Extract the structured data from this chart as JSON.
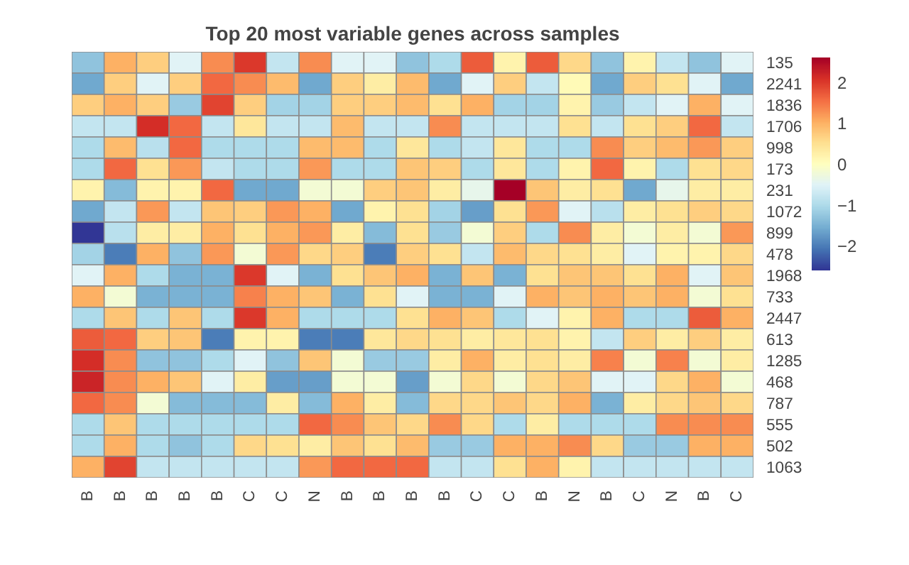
{
  "chart_data": {
    "type": "heatmap",
    "title": "Top 20 most variable genes across samples",
    "categories": [
      "B",
      "B",
      "B",
      "B",
      "B",
      "C",
      "C",
      "N",
      "B",
      "B",
      "B",
      "B",
      "C",
      "C",
      "B",
      "N",
      "B",
      "C",
      "N",
      "B",
      "C"
    ],
    "y_categories": [
      "135",
      "2241",
      "1836",
      "1706",
      "998",
      "173",
      "231",
      "1072",
      "899",
      "478",
      "1968",
      "733",
      "2447",
      "613",
      "1285",
      "468",
      "787",
      "555",
      "502",
      "1063"
    ],
    "cells": [
      [
        -1.3,
        1.0,
        0.7,
        -0.5,
        1.3,
        2.0,
        -0.8,
        1.3,
        -0.5,
        -0.5,
        -1.3,
        -1.0,
        1.7,
        0.2,
        1.7,
        0.6,
        -1.3,
        0.2,
        -0.8,
        -1.3,
        -0.5
      ],
      [
        -1.6,
        0.7,
        -0.5,
        0.7,
        1.6,
        1.3,
        0.9,
        -1.6,
        0.7,
        0.3,
        0.9,
        -1.6,
        -0.5,
        0.7,
        -0.8,
        0.1,
        -1.6,
        0.7,
        0.5,
        -0.5,
        -1.6
      ],
      [
        0.7,
        1.0,
        0.7,
        -1.2,
        1.9,
        0.7,
        -1.1,
        -1.1,
        0.7,
        0.7,
        0.9,
        0.5,
        1.0,
        -1.1,
        -1.1,
        0.2,
        -1.2,
        -0.8,
        -0.5,
        1.0,
        -0.5
      ],
      [
        -0.8,
        -0.8,
        2.1,
        1.6,
        -0.8,
        0.4,
        -0.8,
        -0.8,
        0.9,
        -0.8,
        -0.8,
        1.3,
        -0.8,
        -0.8,
        -0.8,
        0.5,
        -0.8,
        0.5,
        0.7,
        1.6,
        -0.8
      ],
      [
        -1.0,
        0.9,
        -0.9,
        1.6,
        -1.0,
        -1.0,
        -1.0,
        0.9,
        0.9,
        -1.0,
        0.4,
        -1.0,
        -0.8,
        0.4,
        -1.0,
        -1.0,
        1.3,
        0.7,
        0.9,
        1.2,
        0.7
      ],
      [
        -1.0,
        1.6,
        0.5,
        1.2,
        -0.8,
        -1.0,
        -1.0,
        1.2,
        -1.0,
        -1.0,
        0.8,
        0.7,
        -1.0,
        0.4,
        -1.0,
        0.2,
        1.6,
        0.2,
        -1.0,
        0.5,
        0.6
      ],
      [
        0.2,
        -1.4,
        0.2,
        0.2,
        1.6,
        -1.6,
        -1.6,
        -0.2,
        -0.2,
        0.7,
        0.8,
        0.3,
        -0.4,
        2.6,
        0.8,
        0.3,
        0.5,
        -1.6,
        -0.4,
        0.3,
        0.3
      ],
      [
        -1.6,
        -0.8,
        1.2,
        -0.8,
        0.8,
        0.7,
        1.2,
        1.0,
        -1.6,
        0.2,
        0.5,
        -1.1,
        -1.7,
        0.5,
        1.2,
        -0.5,
        -0.9,
        0.3,
        0.5,
        0.7,
        0.6
      ],
      [
        -2.6,
        -0.9,
        0.3,
        0.3,
        1.0,
        0.5,
        1.0,
        1.2,
        0.3,
        -1.4,
        0.5,
        -1.2,
        -0.2,
        0.7,
        -1.0,
        1.3,
        0.3,
        -0.2,
        0.3,
        -0.2,
        1.2
      ],
      [
        -1.1,
        -2.0,
        1.0,
        -1.3,
        1.2,
        -0.2,
        1.2,
        0.6,
        0.7,
        -2.0,
        0.7,
        0.5,
        -0.8,
        0.9,
        0.6,
        0.5,
        0.3,
        -0.5,
        0.2,
        0.2,
        0.6
      ],
      [
        -0.5,
        1.0,
        -1.0,
        -1.5,
        -1.5,
        2.0,
        -0.5,
        -1.5,
        0.5,
        0.8,
        1.0,
        -1.5,
        0.8,
        -1.5,
        0.5,
        0.8,
        0.8,
        0.5,
        1.0,
        -0.5,
        0.8
      ],
      [
        1.0,
        -0.2,
        -1.5,
        -1.5,
        -1.5,
        1.4,
        1.0,
        0.8,
        -1.5,
        0.5,
        -0.5,
        -1.5,
        -1.5,
        -0.5,
        1.0,
        0.8,
        1.0,
        0.8,
        1.0,
        -0.2,
        0.5
      ],
      [
        -1.0,
        0.8,
        -1.0,
        0.8,
        -1.0,
        2.0,
        1.0,
        -1.0,
        -1.0,
        -1.0,
        0.5,
        1.0,
        0.8,
        -1.0,
        -0.5,
        0.2,
        1.0,
        -1.0,
        -1.0,
        1.7,
        1.0
      ],
      [
        1.7,
        1.6,
        0.7,
        0.8,
        -2.0,
        0.2,
        0.2,
        -2.0,
        -2.0,
        0.4,
        0.6,
        0.5,
        0.3,
        0.4,
        0.5,
        0.2,
        -0.8,
        0.7,
        0.3,
        0.7,
        0.3
      ],
      [
        2.1,
        1.3,
        -1.3,
        -1.3,
        -1.0,
        -0.5,
        -1.3,
        0.8,
        -0.2,
        -1.2,
        -1.2,
        0.3,
        1.0,
        0.3,
        0.5,
        0.3,
        1.4,
        -0.2,
        1.4,
        -0.2,
        0.3
      ],
      [
        2.2,
        1.3,
        1.0,
        0.8,
        -0.5,
        0.3,
        -1.7,
        -1.7,
        -0.2,
        -0.2,
        -1.7,
        -0.2,
        0.6,
        -0.2,
        0.6,
        0.8,
        -0.5,
        -0.5,
        0.6,
        1.0,
        -0.2
      ],
      [
        1.6,
        1.3,
        -0.2,
        -1.4,
        -1.4,
        -1.4,
        0.3,
        -1.4,
        1.0,
        0.3,
        -1.4,
        0.6,
        0.6,
        0.8,
        0.6,
        1.0,
        -1.5,
        0.3,
        0.6,
        0.8,
        0.6
      ],
      [
        -1.0,
        0.8,
        -1.0,
        -1.0,
        -1.0,
        -1.0,
        -1.0,
        1.6,
        1.3,
        0.8,
        0.6,
        1.3,
        0.6,
        -1.0,
        0.3,
        -1.0,
        -1.0,
        -1.0,
        1.3,
        1.3,
        1.3
      ],
      [
        -1.0,
        1.0,
        -1.0,
        -1.3,
        -1.0,
        0.6,
        0.5,
        0.3,
        0.8,
        0.5,
        0.9,
        -1.2,
        -1.2,
        1.0,
        1.0,
        1.3,
        0.6,
        -1.2,
        -1.2,
        1.0,
        1.0
      ],
      [
        1.0,
        1.9,
        -0.8,
        -0.8,
        -0.8,
        -0.8,
        -0.8,
        1.2,
        1.6,
        1.6,
        1.6,
        -0.8,
        -0.8,
        0.5,
        1.0,
        0.2,
        -0.8,
        -0.8,
        -0.8,
        -0.8,
        -0.8
      ]
    ],
    "clim": [
      -2.6,
      2.6
    ],
    "cticks": [
      -2,
      -1,
      0,
      1,
      2
    ]
  }
}
